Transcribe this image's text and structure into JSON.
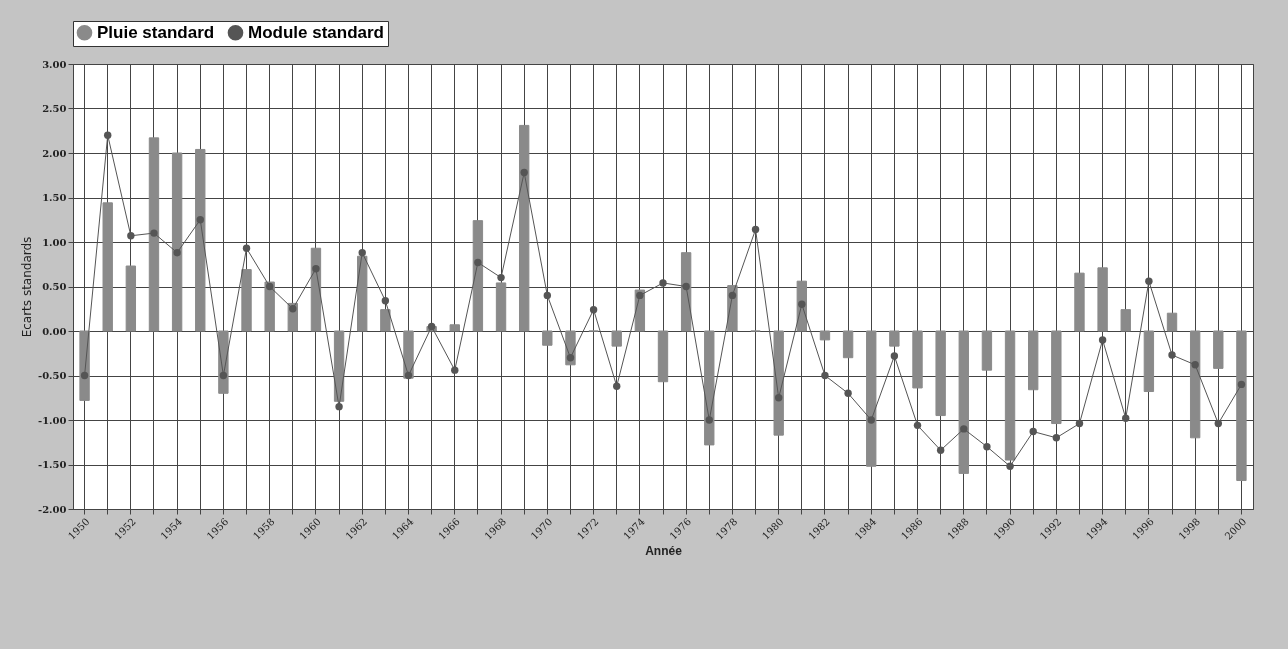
{
  "chart_data": {
    "type": "bar",
    "xlabel": "Année",
    "ylabel": "Ecarts standards",
    "categories": [
      "1950",
      null,
      "1952",
      null,
      "1954",
      null,
      "1956",
      null,
      "1958",
      null,
      "1960",
      null,
      "1962",
      null,
      "1964",
      null,
      "1966",
      null,
      "1968",
      null,
      "1970",
      null,
      "1972",
      null,
      "1974",
      null,
      "1976",
      null,
      "1978",
      null,
      "1980",
      null,
      "1982",
      null,
      "1984",
      null,
      "1986",
      null,
      "1988",
      null,
      "1990",
      null,
      "1992",
      null,
      "1994",
      null,
      "1996",
      null,
      "1998",
      null,
      "2000"
    ],
    "series": [
      {
        "name": "Pluie standard",
        "color": "#8a8a8a",
        "values": [
          -0.78,
          1.44,
          0.73,
          2.17,
          2.0,
          2.04,
          -0.7,
          0.69,
          0.55,
          0.31,
          0.93,
          -0.79,
          0.84,
          0.24,
          -0.53,
          0.05,
          0.07,
          1.24,
          0.54,
          2.31,
          -0.16,
          -0.38,
          0,
          -0.17,
          0.46,
          -0.57,
          0.88,
          -1.28,
          0.51,
          0,
          -1.17,
          0.56,
          -0.1,
          -0.3,
          -1.52,
          -0.17,
          -0.64,
          -0.95,
          -1.6,
          -0.44,
          -1.45,
          -0.66,
          -1.04,
          0.65,
          0.71,
          0.24,
          -0.68,
          0.2,
          -1.2,
          -0.42,
          -1.68
        ]
      },
      {
        "name": "Module standard",
        "type": "line",
        "color": "#555555",
        "values": [
          -0.5,
          2.2,
          1.07,
          1.1,
          0.88,
          1.25,
          -0.5,
          0.93,
          0.5,
          0.25,
          0.7,
          -0.85,
          0.88,
          0.34,
          -0.5,
          0.05,
          -0.44,
          0.77,
          0.6,
          1.78,
          0.4,
          -0.3,
          0.24,
          -0.62,
          0.4,
          0.54,
          0.5,
          -1.0,
          0.4,
          1.14,
          -0.75,
          0.3,
          -0.5,
          -0.7,
          -1.0,
          -0.28,
          -1.06,
          -1.34,
          -1.1,
          -1.3,
          -1.52,
          -1.13,
          -1.2,
          -1.04,
          -0.1,
          -0.98,
          0.56,
          -0.27,
          -0.38,
          -1.04,
          -0.6
        ]
      }
    ],
    "ylim": [
      -2,
      3
    ],
    "yticks": [
      {
        "value": -2,
        "label": "-2.00"
      },
      {
        "value": -1.5,
        "label": "-1.50"
      },
      {
        "value": -1,
        "label": "-1.00"
      },
      {
        "value": -0.5,
        "label": "-0.50"
      },
      {
        "value": 0,
        "label": "0.00"
      },
      {
        "value": 0.5,
        "label": "0.50"
      },
      {
        "value": 1,
        "label": "1.00"
      },
      {
        "value": 1.5,
        "label": "1.50"
      },
      {
        "value": 2,
        "label": "2.00"
      },
      {
        "value": 2.5,
        "label": "2.50"
      },
      {
        "value": 3,
        "label": "3.00"
      }
    ],
    "grid": true,
    "legend": "top",
    "marker": "circle",
    "line_style": "solid"
  }
}
